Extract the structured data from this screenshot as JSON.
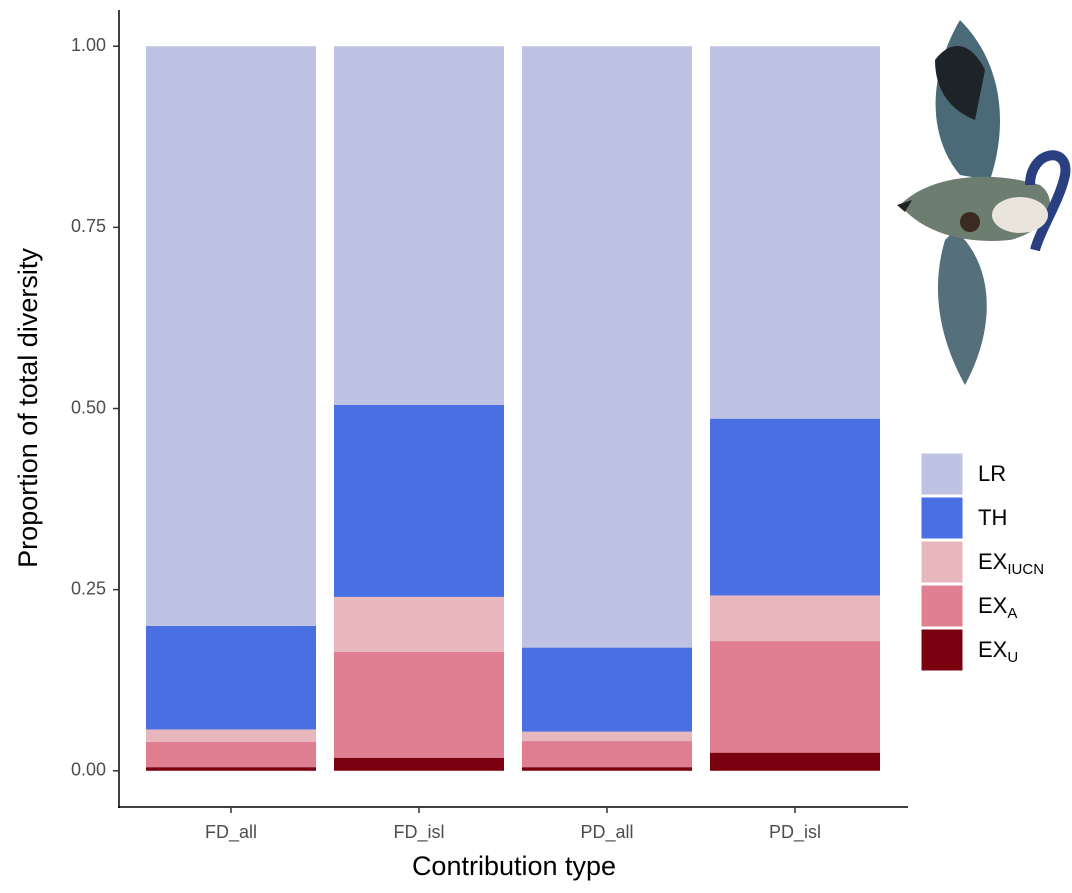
{
  "chart_data": {
    "type": "stacked_bar",
    "x_label": "Contribution type",
    "y_label": "Proportion of total diversity",
    "categories": [
      "FD_all",
      "FD_isl",
      "PD_all",
      "PD_isl"
    ],
    "series": [
      {
        "name": "EX",
        "name_subscript": "U",
        "color": "#7a0010",
        "values": [
          0.005,
          0.018,
          0.005,
          0.025
        ]
      },
      {
        "name": "EX",
        "name_subscript": "A",
        "color": "#df7f91",
        "values": [
          0.035,
          0.146,
          0.036,
          0.154
        ]
      },
      {
        "name": "EX",
        "name_subscript": "IUCN",
        "color": "#e8b7be",
        "values": [
          0.017,
          0.076,
          0.013,
          0.063
        ]
      },
      {
        "name": "TH",
        "color": "#4a6fe3",
        "values": [
          0.143,
          0.265,
          0.116,
          0.244
        ]
      },
      {
        "name": "LR",
        "color": "#bec2e3",
        "values": [
          0.8,
          0.495,
          0.83,
          0.514
        ]
      }
    ],
    "ylim": [
      -0.05,
      1.05
    ],
    "yticks": [
      {
        "value": 0,
        "label": "0.00"
      },
      0.25,
      {
        "value": 0.5,
        "label": "0.50"
      },
      0.75,
      {
        "value": 1,
        "label": "1.00"
      }
    ],
    "legend": "right"
  }
}
